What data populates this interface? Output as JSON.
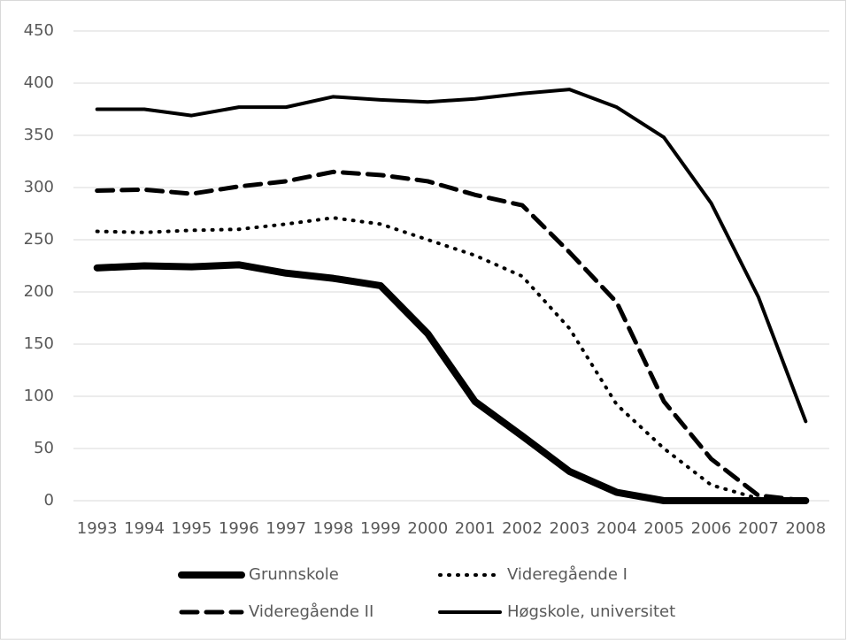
{
  "chart_data": {
    "type": "line",
    "categories": [
      "1993",
      "1994",
      "1995",
      "1996",
      "1997",
      "1998",
      "1999",
      "2000",
      "2001",
      "2002",
      "2003",
      "2004",
      "2005",
      "2006",
      "2007",
      "2008"
    ],
    "series": [
      {
        "name": "Grunnskole",
        "color": "#000000",
        "width": 8,
        "dash": "none",
        "values": [
          223,
          225,
          224,
          226,
          218,
          213,
          206,
          160,
          95,
          62,
          28,
          8,
          0,
          0,
          0,
          0
        ]
      },
      {
        "name": "Videregående I",
        "color": "#000000",
        "width": 4,
        "dash": "1 9",
        "values": [
          258,
          257,
          259,
          260,
          265,
          271,
          265,
          250,
          235,
          215,
          165,
          92,
          50,
          15,
          2,
          0
        ]
      },
      {
        "name": "Videregående II",
        "color": "#000000",
        "width": 5,
        "dash": "18 10",
        "values": [
          297,
          298,
          294,
          301,
          306,
          315,
          312,
          306,
          293,
          283,
          238,
          190,
          95,
          40,
          5,
          0
        ]
      },
      {
        "name": "Høgskole, universitet",
        "color": "#000000",
        "width": 4,
        "dash": "none",
        "values": [
          375,
          375,
          369,
          377,
          377,
          387,
          384,
          382,
          385,
          390,
          394,
          377,
          348,
          285,
          195,
          76
        ]
      }
    ],
    "ylim": [
      0,
      450
    ],
    "yticks": [
      0,
      50,
      100,
      150,
      200,
      250,
      300,
      350,
      400,
      450
    ],
    "grid": true,
    "legend": "bottom"
  }
}
